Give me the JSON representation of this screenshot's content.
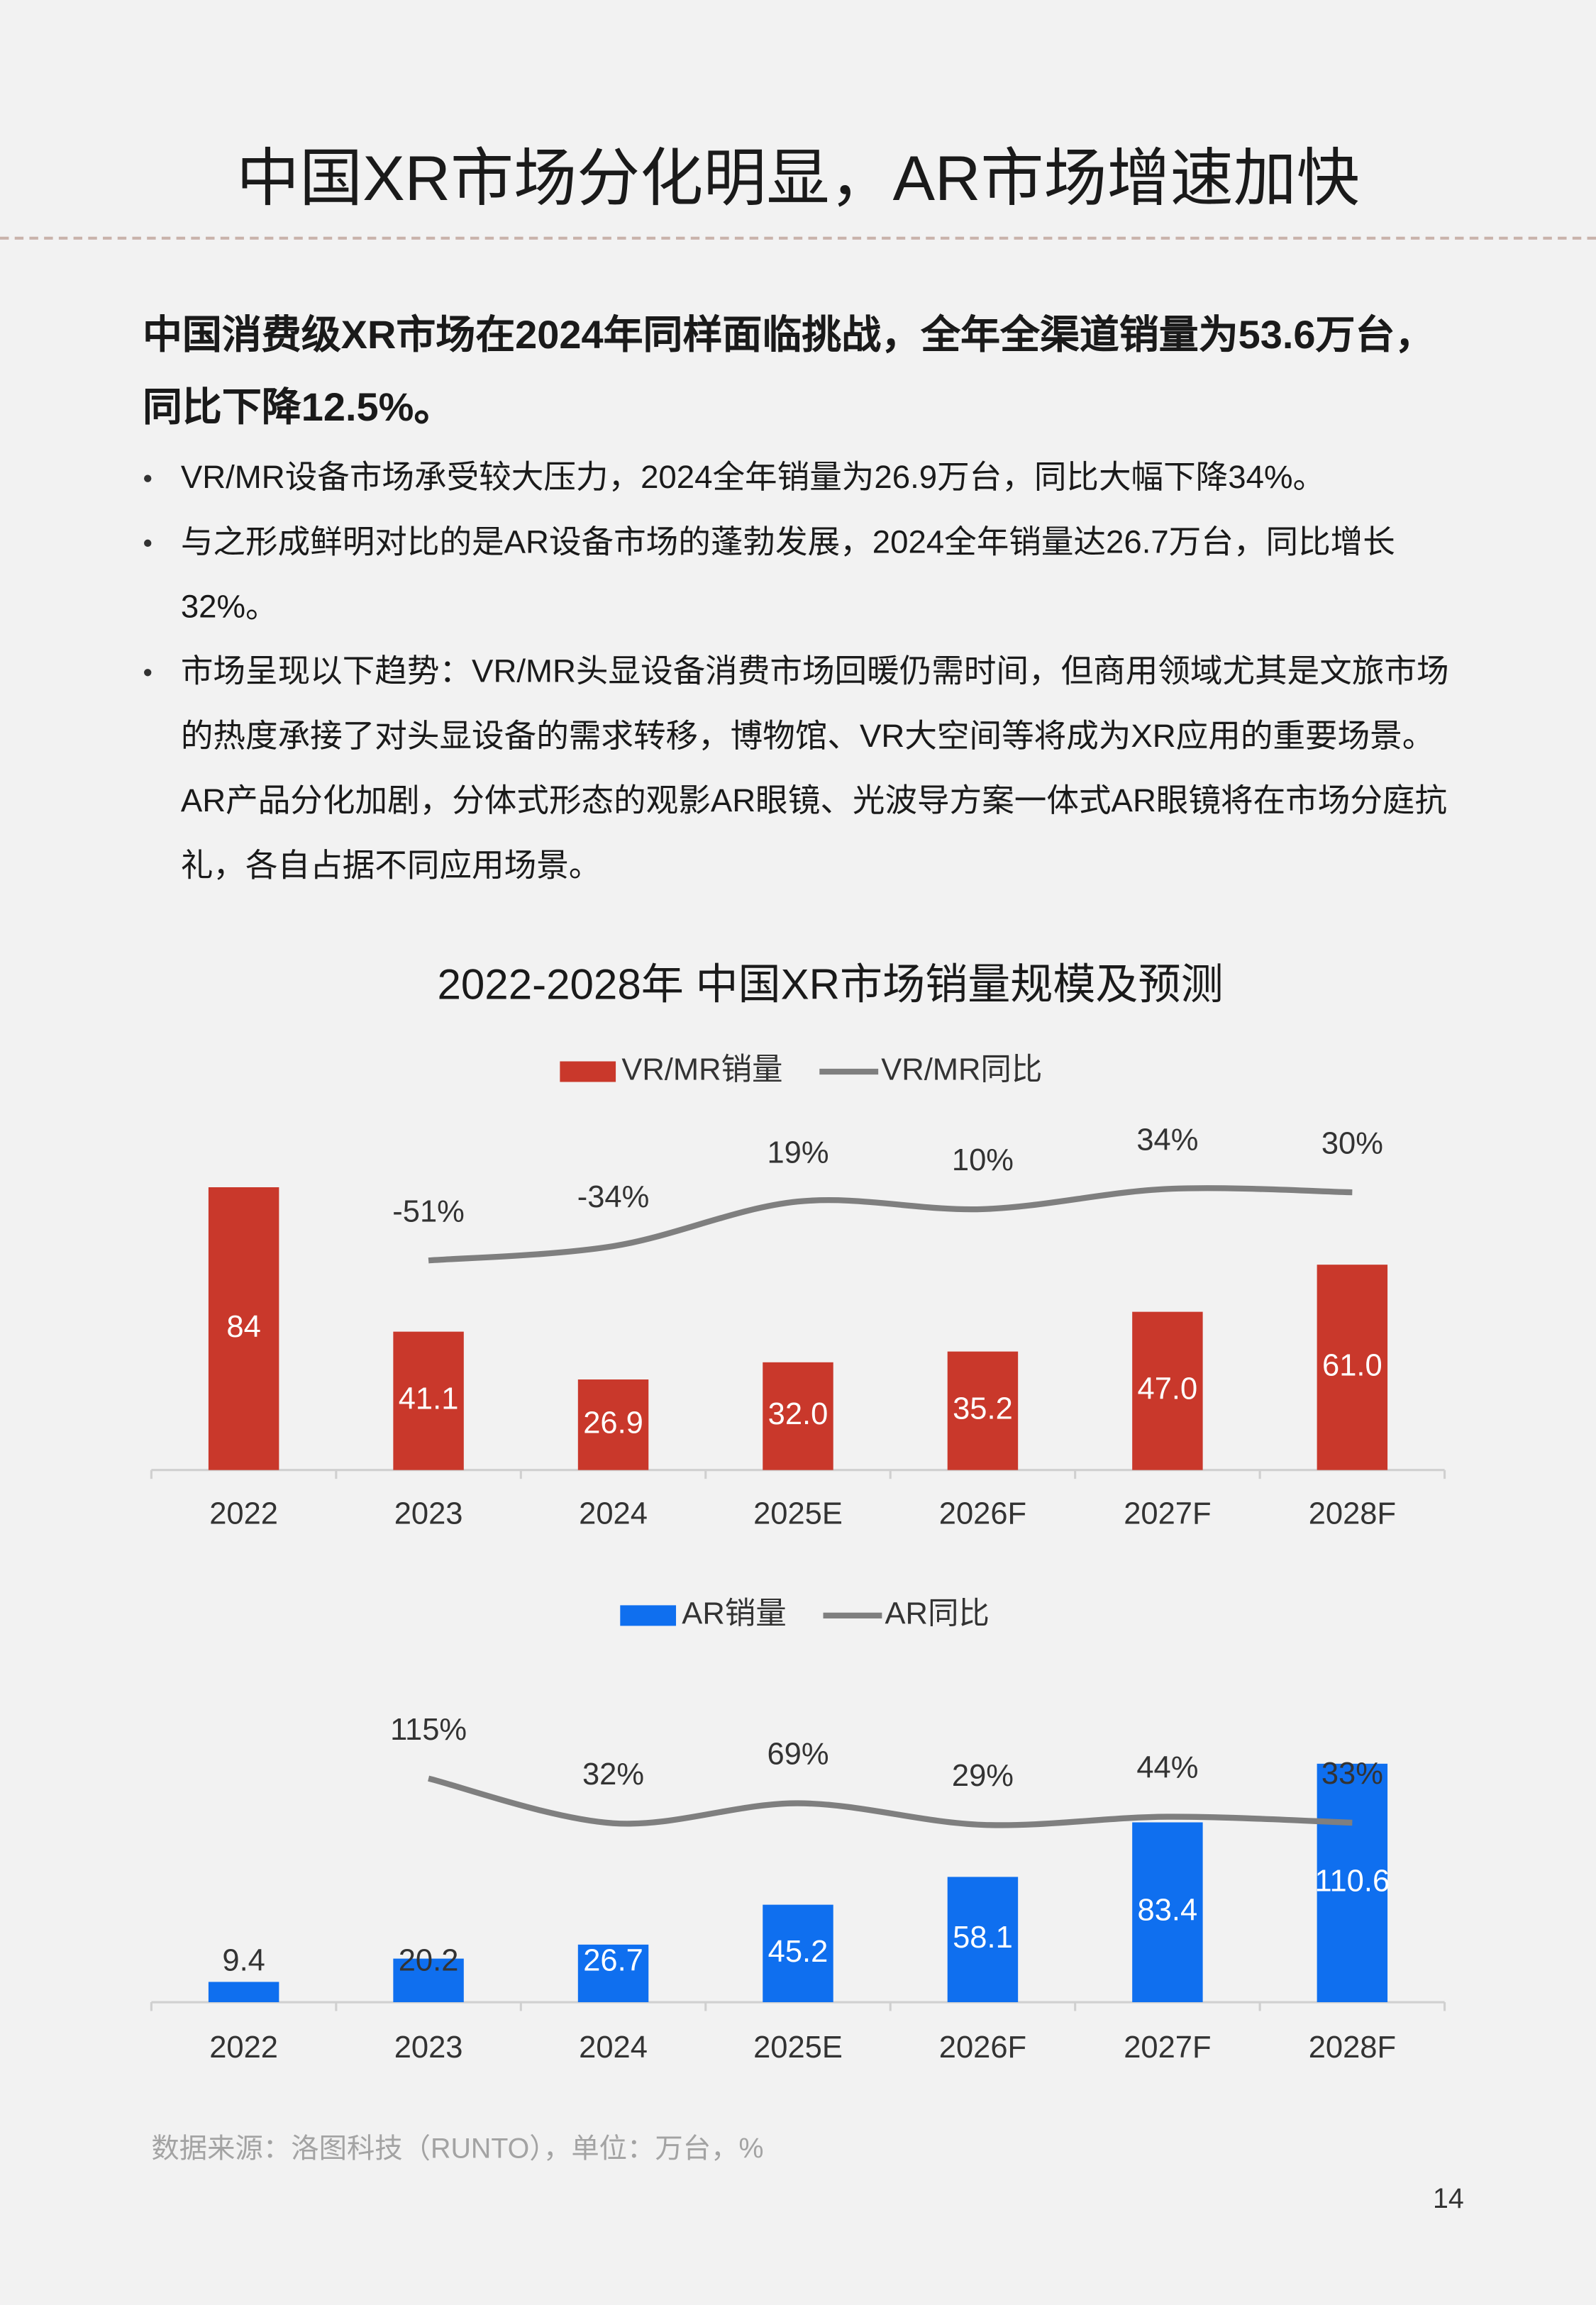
{
  "header": {
    "title": "中国XR市场分化明显，AR市场增速加快"
  },
  "summary": "中国消费级XR市场在2024年同样面临挑战，全年全渠道销量为53.6万台，同比下降12.5%。",
  "bullets": [
    "VR/MR设备市场承受较大压力，2024全年销量为26.9万台，同比大幅下降34%。",
    "与之形成鲜明对比的是AR设备市场的蓬勃发展，2024全年销量达26.7万台，同比增长32%。",
    "市场呈现以下趋势：VR/MR头显设备消费市场回暖仍需时间，但商用领域尤其是文旅市场的热度承接了对头显设备的需求转移，博物馆、VR大空间等将成为XR应用的重要场景。AR产品分化加剧，分体式形态的观影AR眼镜、光波导方案一体式AR眼镜将在市场分庭抗礼，各自占据不同应用场景。"
  ],
  "figure_title": "2022-2028年 中国XR市场销量规模及预测",
  "chart_data": [
    {
      "type": "bar",
      "categories": [
        "2022",
        "2023",
        "2024",
        "2025E",
        "2026F",
        "2027F",
        "2028F"
      ],
      "series": [
        {
          "name": "VR/MR销量",
          "type": "bar",
          "color": "#c9382b",
          "values": [
            84,
            41.1,
            26.9,
            32.0,
            35.2,
            47.0,
            61.0
          ],
          "value_labels": [
            "84",
            "41.1",
            "26.9",
            "32.0",
            "35.2",
            "47.0",
            "61.0"
          ]
        },
        {
          "name": "VR/MR同比",
          "type": "line",
          "axis": "y2",
          "color": "#7f7f7f",
          "values": [
            null,
            -51,
            -34,
            19,
            10,
            34,
            30
          ],
          "value_labels": [
            null,
            "-51%",
            "-34%",
            "19%",
            "10%",
            "34%",
            "30%"
          ]
        }
      ],
      "ylim": [
        0,
        100
      ],
      "y2lim": [
        -300,
        100
      ],
      "grid": false,
      "legend": "top"
    },
    {
      "type": "bar",
      "categories": [
        "2022",
        "2023",
        "2024",
        "2025E",
        "2026F",
        "2027F",
        "2028F"
      ],
      "series": [
        {
          "name": "AR销量",
          "type": "bar",
          "color": "#0f6fef",
          "values": [
            9.4,
            20.2,
            26.7,
            45.2,
            58.1,
            83.4,
            110.6
          ]
        },
        {
          "name": "AR同比",
          "type": "line",
          "axis": "y2",
          "color": "#7f7f7f",
          "values": [
            null,
            115,
            32,
            69,
            29,
            44,
            33
          ],
          "value_labels": [
            null,
            "115%",
            "32%",
            "69%",
            "29%",
            "44%",
            "33%"
          ]
        }
      ],
      "ylim": [
        0,
        120
      ],
      "y2lim": [
        -300,
        180
      ],
      "grid": false,
      "legend": "top"
    }
  ],
  "source": "数据来源：洛图科技（RUNTO），单位：万台，%",
  "page_number": 14
}
